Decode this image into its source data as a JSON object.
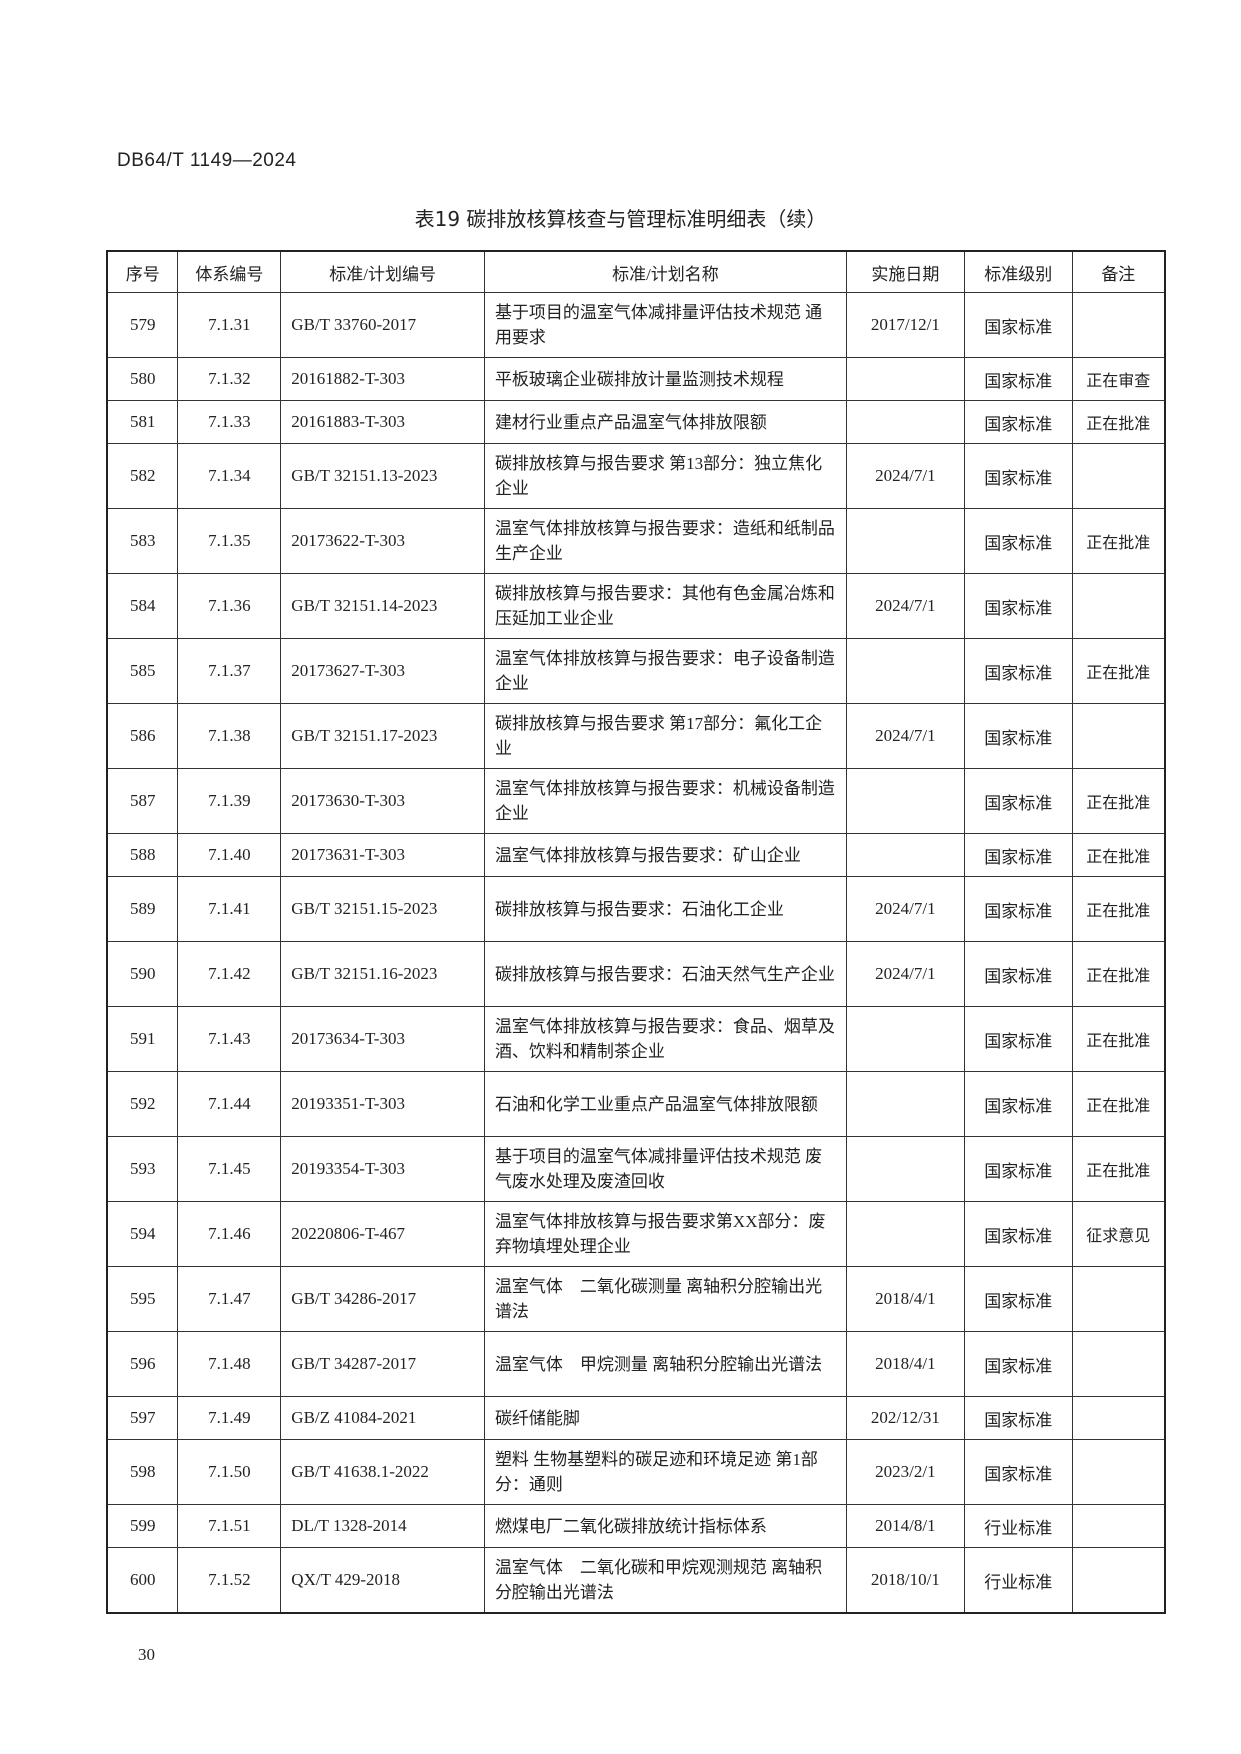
{
  "header": {
    "doc_id": "DB64/T 1149—2024"
  },
  "title": "表19  碳排放核算核查与管理标准明细表（续）",
  "table": {
    "columns": [
      "序号",
      "体系编号",
      "标准/计划编号",
      "标准/计划名称",
      "实施日期",
      "标准级别",
      "备注"
    ],
    "rows": [
      {
        "no": "579",
        "sys": "7.1.31",
        "code": "GB/T 33760-2017",
        "name": "基于项目的温室气体减排量评估技术规范 通用要求",
        "date": "2017/12/1",
        "level": "国家标准",
        "note": "",
        "lines": 2
      },
      {
        "no": "580",
        "sys": "7.1.32",
        "code": "20161882-T-303",
        "name": "平板玻璃企业碳排放计量监测技术规程",
        "date": "",
        "level": "国家标准",
        "note": "正在审查",
        "lines": 1
      },
      {
        "no": "581",
        "sys": "7.1.33",
        "code": "20161883-T-303",
        "name": "建材行业重点产品温室气体排放限额",
        "date": "",
        "level": "国家标准",
        "note": "正在批准",
        "lines": 1
      },
      {
        "no": "582",
        "sys": "7.1.34",
        "code": "GB/T 32151.13-2023",
        "name": "碳排放核算与报告要求 第13部分：独立焦化企业",
        "date": "2024/7/1",
        "level": "国家标准",
        "note": "",
        "lines": 2
      },
      {
        "no": "583",
        "sys": "7.1.35",
        "code": "20173622-T-303",
        "name": "温室气体排放核算与报告要求：造纸和纸制品生产企业",
        "date": "",
        "level": "国家标准",
        "note": "正在批准",
        "lines": 2
      },
      {
        "no": "584",
        "sys": "7.1.36",
        "code": "GB/T 32151.14-2023",
        "name": "碳排放核算与报告要求：其他有色金属冶炼和压延加工业企业",
        "date": "2024/7/1",
        "level": "国家标准",
        "note": "",
        "lines": 2
      },
      {
        "no": "585",
        "sys": "7.1.37",
        "code": "20173627-T-303",
        "name": "温室气体排放核算与报告要求：电子设备制造企业",
        "date": "",
        "level": "国家标准",
        "note": "正在批准",
        "lines": 2
      },
      {
        "no": "586",
        "sys": "7.1.38",
        "code": "GB/T 32151.17-2023",
        "name": "碳排放核算与报告要求 第17部分：氟化工企业",
        "date": "2024/7/1",
        "level": "国家标准",
        "note": "",
        "lines": 2
      },
      {
        "no": "587",
        "sys": "7.1.39",
        "code": "20173630-T-303",
        "name": "温室气体排放核算与报告要求：机械设备制造企业",
        "date": "",
        "level": "国家标准",
        "note": "正在批准",
        "lines": 2
      },
      {
        "no": "588",
        "sys": "7.1.40",
        "code": "20173631-T-303",
        "name": "温室气体排放核算与报告要求：矿山企业",
        "date": "",
        "level": "国家标准",
        "note": "正在批准",
        "lines": 1
      },
      {
        "no": "589",
        "sys": "7.1.41",
        "code": "GB/T 32151.15-2023",
        "name": "碳排放核算与报告要求：石油化工企业",
        "date": "2024/7/1",
        "level": "国家标准",
        "note": "正在批准",
        "lines": 2
      },
      {
        "no": "590",
        "sys": "7.1.42",
        "code": "GB/T 32151.16-2023",
        "name": "碳排放核算与报告要求：石油天然气生产企业",
        "date": "2024/7/1",
        "level": "国家标准",
        "note": "正在批准",
        "lines": 2
      },
      {
        "no": "591",
        "sys": "7.1.43",
        "code": "20173634-T-303",
        "name": "温室气体排放核算与报告要求：食品、烟草及酒、饮料和精制茶企业",
        "date": "",
        "level": "国家标准",
        "note": "正在批准",
        "lines": 2
      },
      {
        "no": "592",
        "sys": "7.1.44",
        "code": "20193351-T-303",
        "name": "石油和化学工业重点产品温室气体排放限额",
        "date": "",
        "level": "国家标准",
        "note": "正在批准",
        "lines": 2
      },
      {
        "no": "593",
        "sys": "7.1.45",
        "code": "20193354-T-303",
        "name": "基于项目的温室气体减排量评估技术规范 废气废水处理及废渣回收",
        "date": "",
        "level": "国家标准",
        "note": "正在批准",
        "lines": 2
      },
      {
        "no": "594",
        "sys": "7.1.46",
        "code": "20220806-T-467",
        "name": "温室气体排放核算与报告要求第XX部分：废弃物填埋处理企业",
        "date": "",
        "level": "国家标准",
        "note": "征求意见",
        "lines": 2
      },
      {
        "no": "595",
        "sys": "7.1.47",
        "code": "GB/T 34286-2017",
        "name": "温室气体　二氧化碳测量 离轴积分腔输出光谱法",
        "date": "2018/4/1",
        "level": "国家标准",
        "note": "",
        "lines": 2
      },
      {
        "no": "596",
        "sys": "7.1.48",
        "code": "GB/T 34287-2017",
        "name": "温室气体　甲烷测量 离轴积分腔输出光谱法",
        "date": "2018/4/1",
        "level": "国家标准",
        "note": "",
        "lines": 2
      },
      {
        "no": "597",
        "sys": "7.1.49",
        "code": "GB/Z 41084-2021",
        "name": "碳纤储能脚",
        "date": "202/12/31",
        "level": "国家标准",
        "note": "",
        "lines": 1
      },
      {
        "no": "598",
        "sys": "7.1.50",
        "code": "GB/T 41638.1-2022",
        "name": "塑料 生物基塑料的碳足迹和环境足迹 第1部分：通则",
        "date": "2023/2/1",
        "level": "国家标准",
        "note": "",
        "lines": 2
      },
      {
        "no": "599",
        "sys": "7.1.51",
        "code": "DL/T 1328-2014",
        "name": "燃煤电厂二氧化碳排放统计指标体系",
        "date": "2014/8/1",
        "level": "行业标准",
        "note": "",
        "lines": 1
      },
      {
        "no": "600",
        "sys": "7.1.52",
        "code": "QX/T 429-2018",
        "name": "温室气体　二氧化碳和甲烷观测规范 离轴积分腔输出光谱法",
        "date": "2018/10/1",
        "level": "行业标准",
        "note": "",
        "lines": 2
      }
    ]
  },
  "footer": {
    "page_number": "30"
  }
}
